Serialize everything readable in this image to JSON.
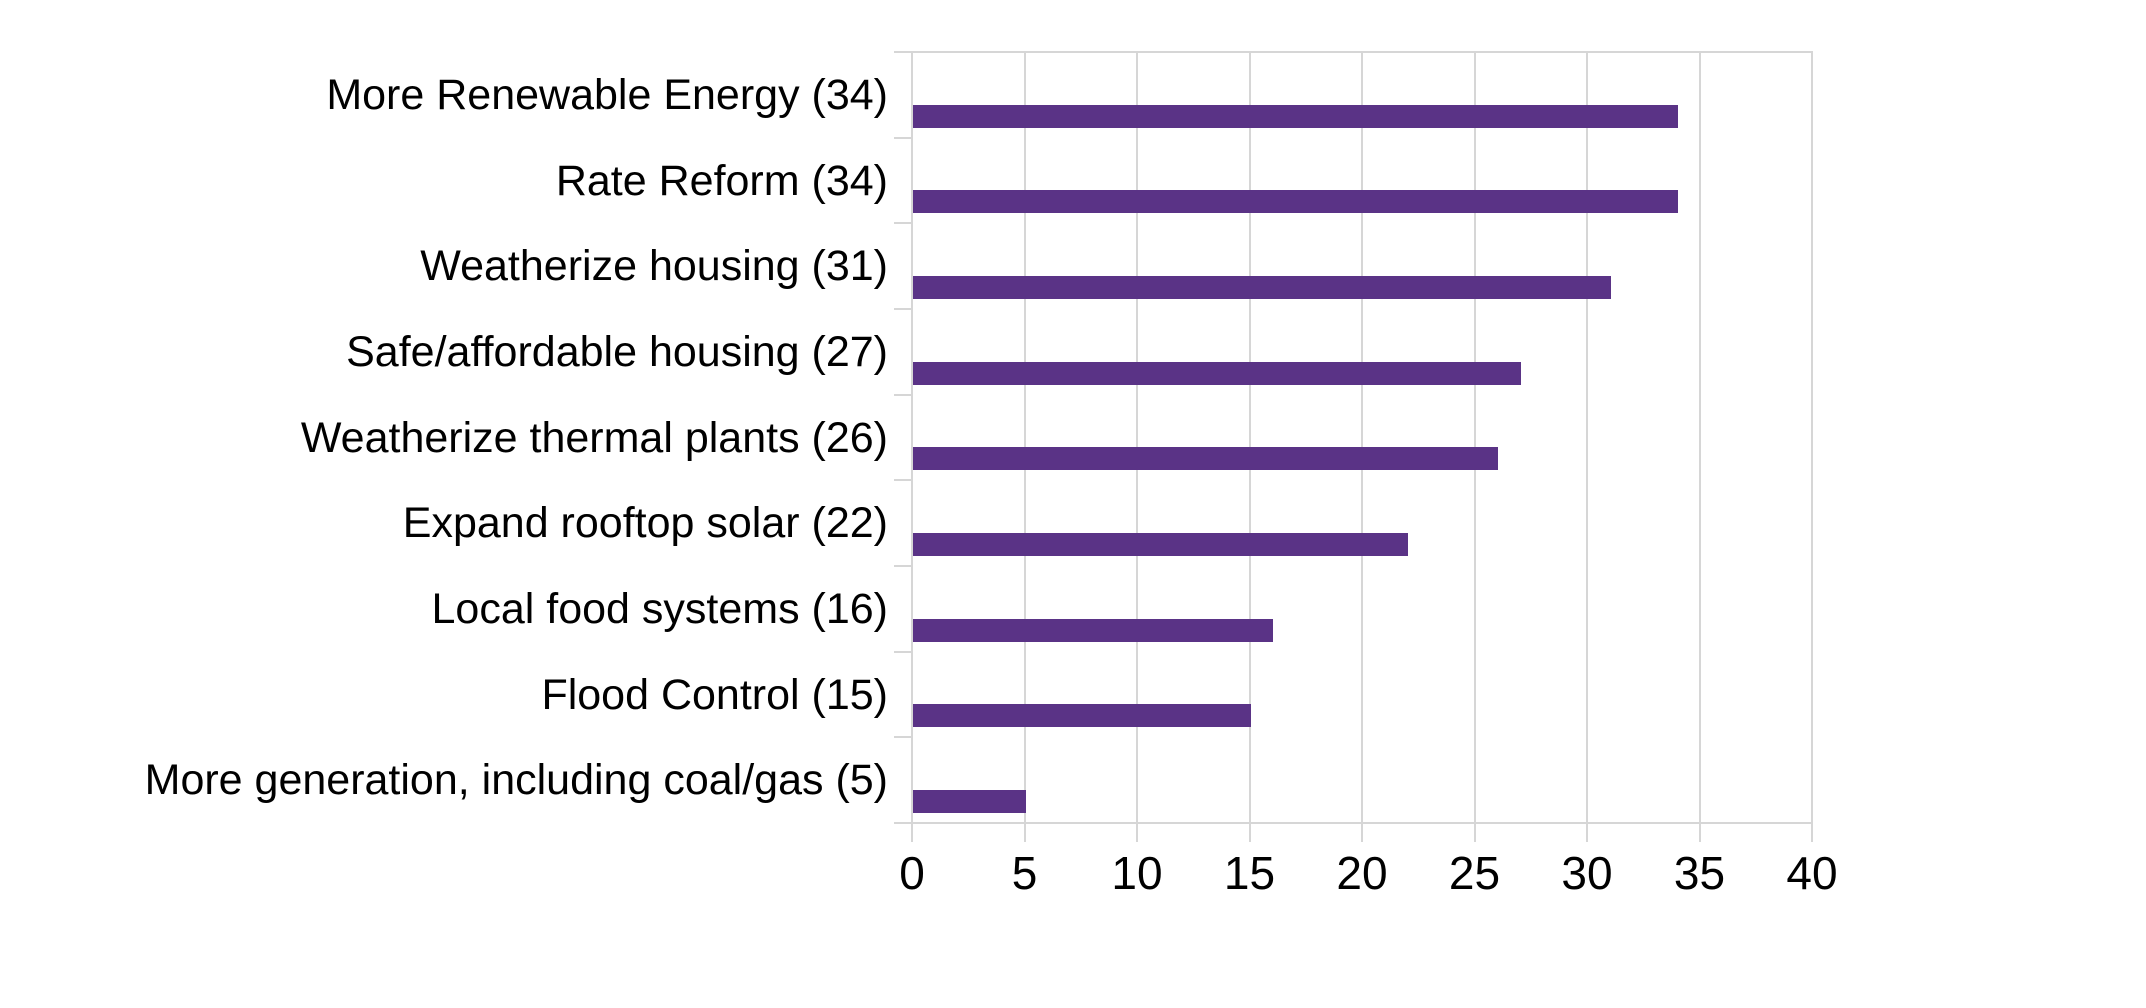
{
  "chart_data": {
    "type": "bar",
    "orientation": "horizontal",
    "title": "",
    "xlabel": "",
    "ylabel": "",
    "categories": [
      "More Renewable Energy (34)",
      "Rate Reform (34)",
      "Weatherize housing (31)",
      "Safe/affordable housing (27)",
      "Weatherize thermal plants (26)",
      "Expand rooftop solar (22)",
      "Local food systems (16)",
      "Flood Control (15)",
      "More generation, including coal/gas (5)"
    ],
    "values": [
      34,
      34,
      31,
      27,
      26,
      22,
      16,
      15,
      5
    ],
    "xlim": [
      0,
      40
    ],
    "xticks": [
      0,
      5,
      10,
      15,
      20,
      25,
      30,
      35,
      40
    ],
    "grid": "vertical-gridlines-on",
    "legend": "none",
    "colors": {
      "bar": "#5a3386",
      "gridline": "#d6d6d6",
      "axis": "#d6d6d6",
      "label": "#000000",
      "background": "#ffffff"
    }
  }
}
